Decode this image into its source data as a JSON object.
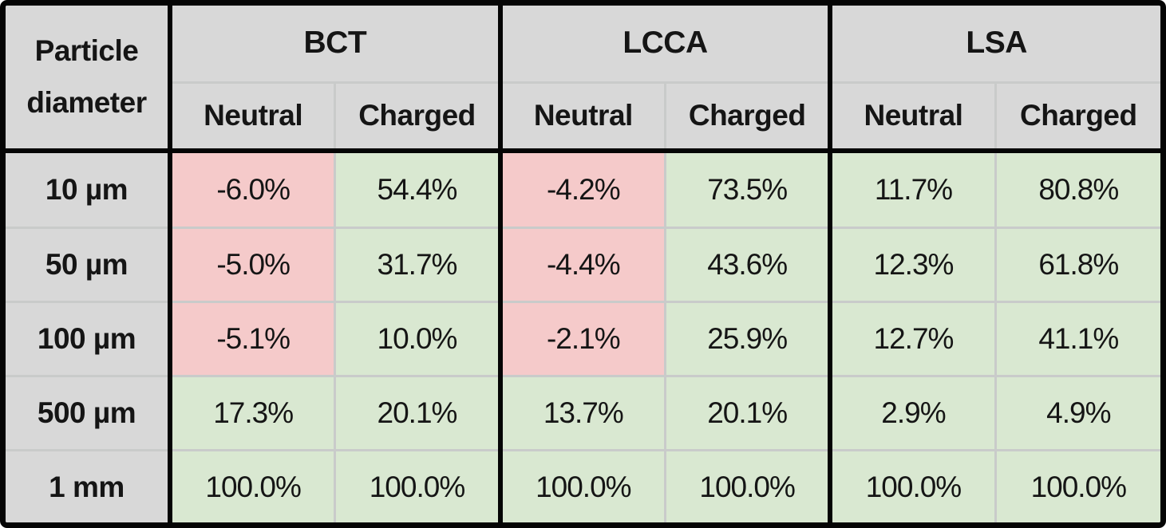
{
  "table": {
    "corner_header": {
      "line1": "Particle",
      "line2": "diameter"
    },
    "groups": [
      {
        "label": "BCT",
        "subcolumns": [
          "Neutral",
          "Charged"
        ]
      },
      {
        "label": "LCCA",
        "subcolumns": [
          "Neutral",
          "Charged"
        ]
      },
      {
        "label": "LSA",
        "subcolumns": [
          "Neutral",
          "Charged"
        ]
      }
    ],
    "rows": [
      {
        "label": "10 µm",
        "values": [
          {
            "text": "-6.0%",
            "tone": "negative"
          },
          {
            "text": "54.4%",
            "tone": "positive"
          },
          {
            "text": "-4.2%",
            "tone": "negative"
          },
          {
            "text": "73.5%",
            "tone": "positive"
          },
          {
            "text": "11.7%",
            "tone": "positive"
          },
          {
            "text": "80.8%",
            "tone": "positive"
          }
        ]
      },
      {
        "label": "50 µm",
        "values": [
          {
            "text": "-5.0%",
            "tone": "negative"
          },
          {
            "text": "31.7%",
            "tone": "positive"
          },
          {
            "text": "-4.4%",
            "tone": "negative"
          },
          {
            "text": "43.6%",
            "tone": "positive"
          },
          {
            "text": "12.3%",
            "tone": "positive"
          },
          {
            "text": "61.8%",
            "tone": "positive"
          }
        ]
      },
      {
        "label": "100 µm",
        "values": [
          {
            "text": "-5.1%",
            "tone": "negative"
          },
          {
            "text": "10.0%",
            "tone": "positive"
          },
          {
            "text": "-2.1%",
            "tone": "negative"
          },
          {
            "text": "25.9%",
            "tone": "positive"
          },
          {
            "text": "12.7%",
            "tone": "positive"
          },
          {
            "text": "41.1%",
            "tone": "positive"
          }
        ]
      },
      {
        "label": "500 µm",
        "values": [
          {
            "text": "17.3%",
            "tone": "positive"
          },
          {
            "text": "20.1%",
            "tone": "positive"
          },
          {
            "text": "13.7%",
            "tone": "positive"
          },
          {
            "text": "20.1%",
            "tone": "positive"
          },
          {
            "text": "2.9%",
            "tone": "positive"
          },
          {
            "text": "4.9%",
            "tone": "positive"
          }
        ]
      },
      {
        "label": "1 mm",
        "values": [
          {
            "text": "100.0%",
            "tone": "positive"
          },
          {
            "text": "100.0%",
            "tone": "positive"
          },
          {
            "text": "100.0%",
            "tone": "positive"
          },
          {
            "text": "100.0%",
            "tone": "positive"
          },
          {
            "text": "100.0%",
            "tone": "positive"
          },
          {
            "text": "100.0%",
            "tone": "positive"
          }
        ]
      }
    ]
  },
  "colors": {
    "header_bg": "#d8d8d8",
    "negative_bg": "#f5caca",
    "positive_bg": "#d9e8d1",
    "divider": "#c9cbca",
    "line": "#050505",
    "text": "#151515"
  },
  "chart_data": {
    "type": "table",
    "title": "",
    "row_header": "Particle diameter",
    "categories": [
      "10 µm",
      "50 µm",
      "100 µm",
      "500 µm",
      "1 mm"
    ],
    "series": [
      {
        "name": "BCT Neutral",
        "values": [
          -6.0,
          -5.0,
          -5.1,
          17.3,
          100.0
        ]
      },
      {
        "name": "BCT Charged",
        "values": [
          54.4,
          31.7,
          10.0,
          20.1,
          100.0
        ]
      },
      {
        "name": "LCCA Neutral",
        "values": [
          -4.2,
          -4.4,
          -2.1,
          13.7,
          100.0
        ]
      },
      {
        "name": "LCCA Charged",
        "values": [
          73.5,
          43.6,
          25.9,
          20.1,
          100.0
        ]
      },
      {
        "name": "LSA Neutral",
        "values": [
          11.7,
          12.3,
          12.7,
          2.9,
          100.0
        ]
      },
      {
        "name": "LSA Charged",
        "values": [
          80.8,
          61.8,
          41.1,
          4.9,
          100.0
        ]
      }
    ],
    "unit": "%",
    "layout_hints": "negative cells shaded red, non-negative cells shaded green; header row and particle-diameter column shaded gray"
  }
}
